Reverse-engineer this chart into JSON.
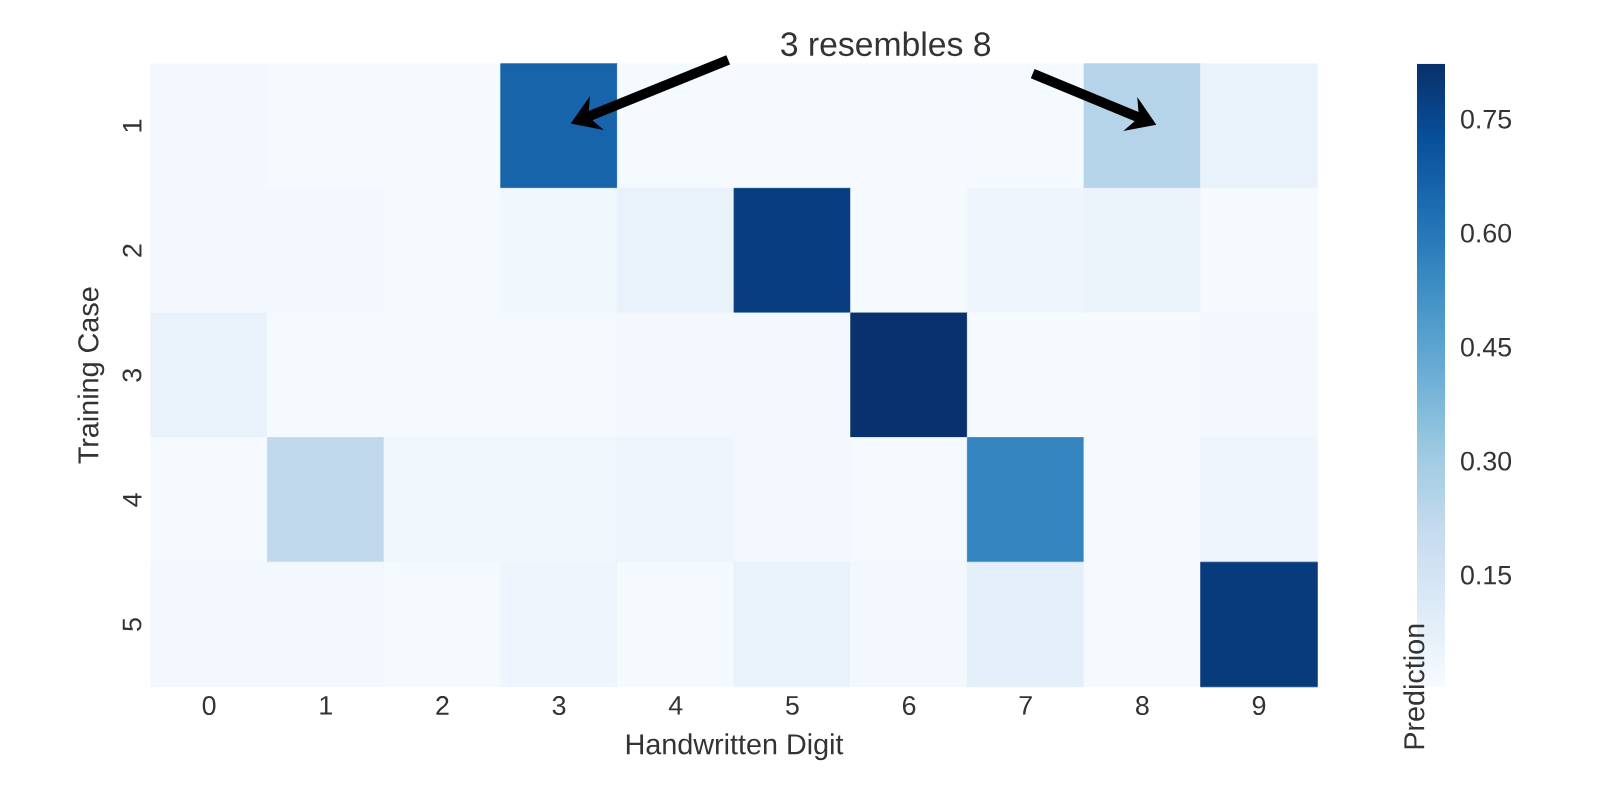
{
  "chart_data": {
    "type": "heatmap",
    "xlabel": "Handwritten Digit",
    "ylabel": "Training Case",
    "clabel": "Prediction",
    "categories": [
      "0",
      "1",
      "2",
      "3",
      "4",
      "5",
      "6",
      "7",
      "8",
      "9"
    ],
    "y_categories": [
      "1",
      "2",
      "3",
      "4",
      "5"
    ],
    "cells": [
      [
        0.02,
        0.01,
        0.01,
        0.66,
        0.01,
        0.01,
        0.01,
        0.01,
        0.25,
        0.06
      ],
      [
        0.02,
        0.02,
        0.01,
        0.03,
        0.06,
        0.78,
        0.01,
        0.04,
        0.05,
        0.01
      ],
      [
        0.06,
        0.01,
        0.01,
        0.01,
        0.02,
        0.02,
        0.82,
        0.01,
        0.01,
        0.02
      ],
      [
        0.01,
        0.22,
        0.03,
        0.03,
        0.04,
        0.02,
        0.01,
        0.56,
        0.01,
        0.04
      ],
      [
        0.02,
        0.02,
        0.01,
        0.04,
        0.01,
        0.06,
        0.02,
        0.08,
        0.01,
        0.79
      ]
    ],
    "clim": [
      0.003,
      0.823
    ],
    "cticks": [
      0.15,
      {
        "value": 0.3,
        "label": "0.30"
      },
      0.45,
      {
        "value": 0.6,
        "label": "0.60"
      },
      0.75
    ],
    "annotations": [
      "3 resembles 8"
    ]
  }
}
